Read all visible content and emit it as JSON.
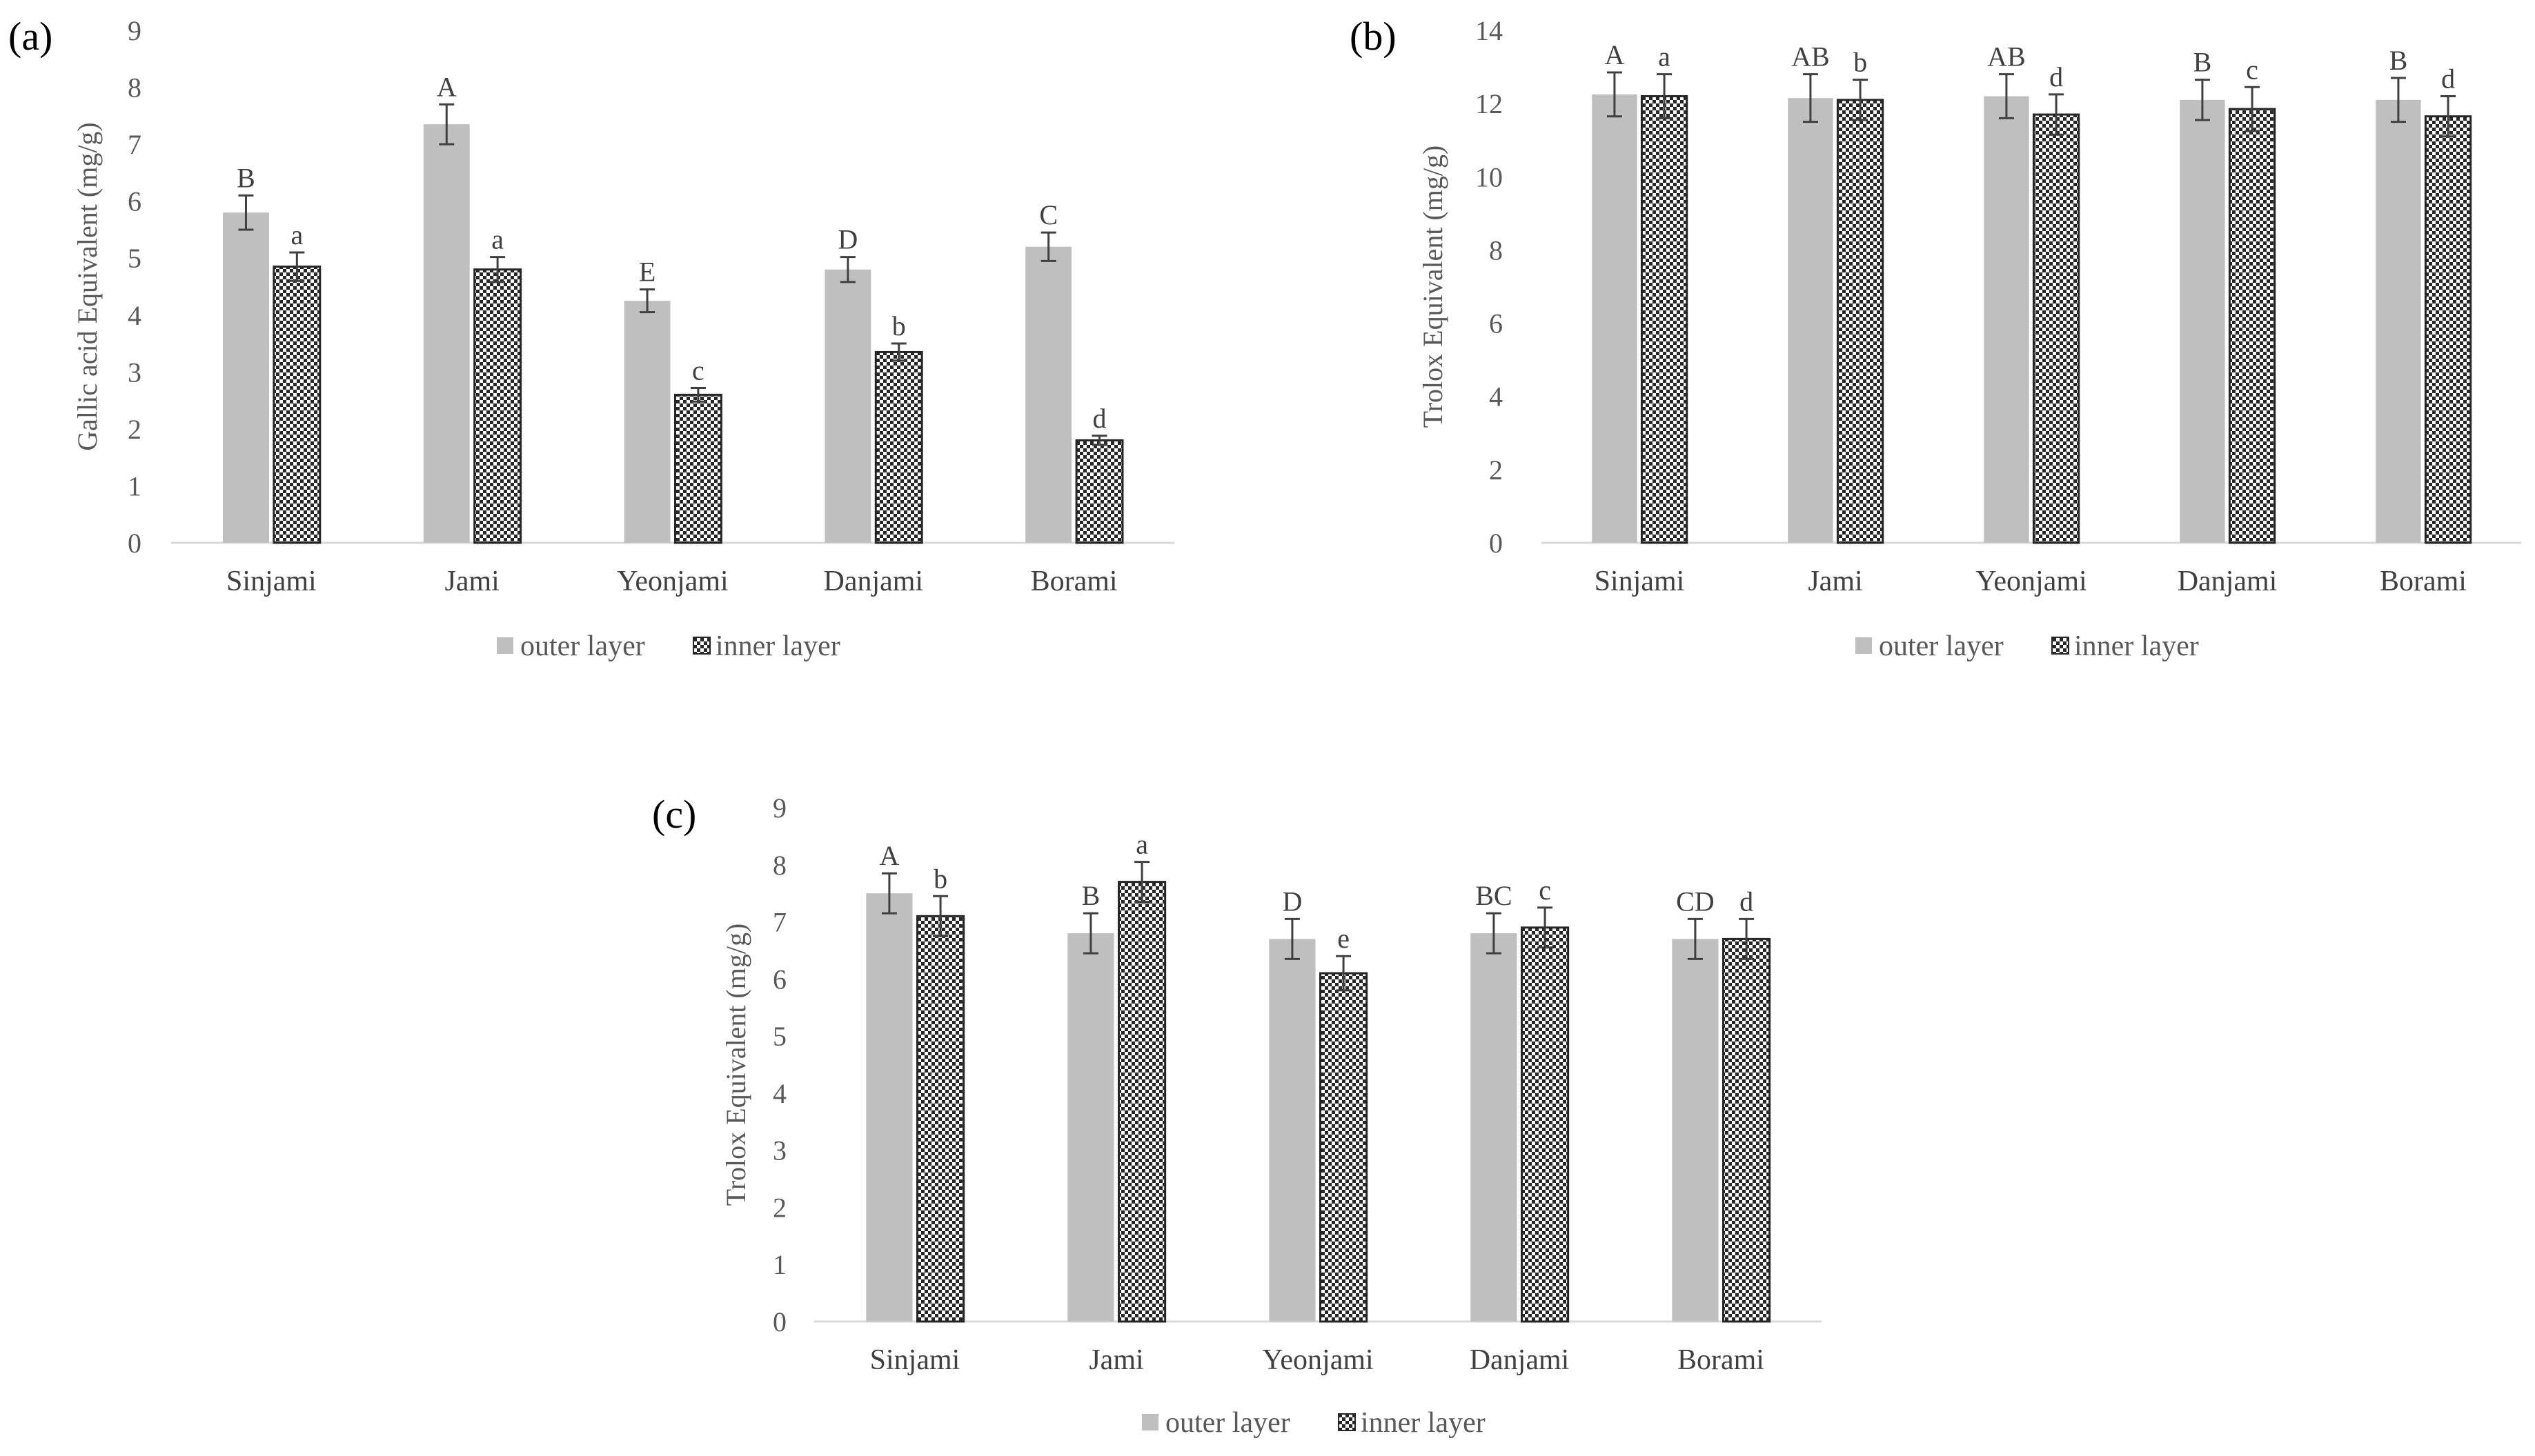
{
  "figure": {
    "colors": {
      "outer": "#bfbfbf",
      "inner_stroke": "#262626",
      "axis": "#d9d9d9",
      "text": "#595959",
      "error": "#404040"
    }
  },
  "chart_data": [
    {
      "type": "bar",
      "panel_label": "(a)",
      "title": "",
      "xlabel": "",
      "ylabel": "Gallic acid Equivalent (mg/g)",
      "ylim": [
        0,
        9
      ],
      "yticks": [
        0,
        1,
        2,
        3,
        4,
        5,
        6,
        7,
        8,
        9
      ],
      "categories": [
        "Sinjami",
        "Jami",
        "Yeonjami",
        "Danjami",
        "Borami"
      ],
      "legend_position": "bottom",
      "series": [
        {
          "name": "outer layer",
          "pattern": "solid",
          "values": [
            5.8,
            7.35,
            4.25,
            4.8,
            5.2
          ],
          "errors": [
            0.3,
            0.35,
            0.2,
            0.22,
            0.25
          ],
          "labels": [
            "B",
            "A",
            "E",
            "D",
            "C"
          ]
        },
        {
          "name": "inner layer",
          "pattern": "checker",
          "values": [
            4.85,
            4.8,
            2.6,
            3.35,
            1.8
          ],
          "errors": [
            0.25,
            0.22,
            0.12,
            0.15,
            0.08
          ],
          "labels": [
            "a",
            "a",
            "c",
            "b",
            "d"
          ]
        }
      ]
    },
    {
      "type": "bar",
      "panel_label": "(b)",
      "title": "",
      "xlabel": "",
      "ylabel": "Trolox Equivalent (mg/g)",
      "ylim": [
        0,
        14
      ],
      "yticks": [
        0,
        2,
        4,
        6,
        8,
        10,
        12,
        14
      ],
      "categories": [
        "Sinjami",
        "Jami",
        "Yeonjami",
        "Danjami",
        "Borami"
      ],
      "legend_position": "bottom",
      "series": [
        {
          "name": "outer layer",
          "pattern": "solid",
          "values": [
            12.25,
            12.15,
            12.2,
            12.1,
            12.1
          ],
          "errors": [
            0.6,
            0.65,
            0.6,
            0.55,
            0.6
          ],
          "labels": [
            "A",
            "AB",
            "AB",
            "B",
            "B"
          ]
        },
        {
          "name": "inner layer",
          "pattern": "checker",
          "values": [
            12.2,
            12.1,
            11.7,
            11.85,
            11.65
          ],
          "errors": [
            0.6,
            0.55,
            0.55,
            0.6,
            0.55
          ],
          "labels": [
            "a",
            "b",
            "d",
            "c",
            "d"
          ]
        }
      ]
    },
    {
      "type": "bar",
      "panel_label": "(c)",
      "title": "",
      "xlabel": "",
      "ylabel": "Trolox Equivalent (mg/g)",
      "ylim": [
        0,
        9
      ],
      "yticks": [
        0,
        1,
        2,
        3,
        4,
        5,
        6,
        7,
        8,
        9
      ],
      "categories": [
        "Sinjami",
        "Jami",
        "Yeonjami",
        "Danjami",
        "Borami"
      ],
      "legend_position": "bottom",
      "series": [
        {
          "name": "outer layer",
          "pattern": "solid",
          "values": [
            7.5,
            6.8,
            6.7,
            6.8,
            6.7
          ],
          "errors": [
            0.35,
            0.35,
            0.35,
            0.35,
            0.35
          ],
          "labels": [
            "A",
            "B",
            "D",
            "BC",
            "CD"
          ]
        },
        {
          "name": "inner layer",
          "pattern": "checker",
          "values": [
            7.1,
            7.7,
            6.1,
            6.9,
            6.7
          ],
          "errors": [
            0.35,
            0.35,
            0.3,
            0.35,
            0.35
          ],
          "labels": [
            "b",
            "a",
            "e",
            "c",
            "d"
          ]
        }
      ]
    }
  ]
}
